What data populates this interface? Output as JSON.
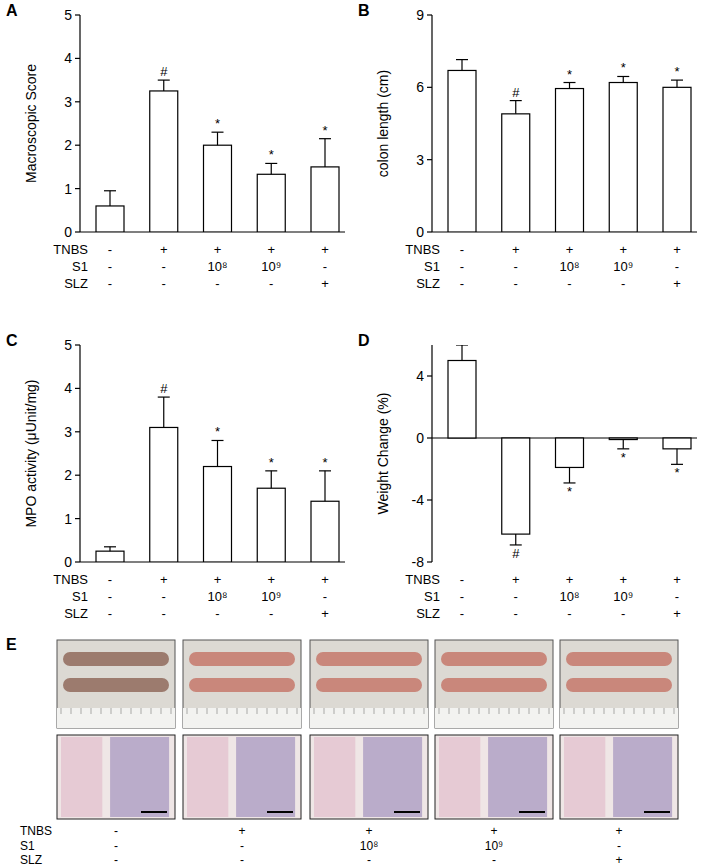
{
  "chart_data": [
    {
      "type": "bar",
      "title": "A",
      "y_label": "Macroscopic Score",
      "color": "#ffffff",
      "categories": [
        null,
        null,
        null,
        null,
        null
      ],
      "values": [
        0.6,
        3.25,
        2.0,
        1.33,
        1.5
      ],
      "errors": [
        0.35,
        0.25,
        0.3,
        0.25,
        0.65
      ],
      "annotations": [
        null,
        "#",
        "*",
        "*",
        "*"
      ],
      "ylim": [
        0,
        5
      ],
      "yticks": [
        0,
        1,
        2,
        3,
        4,
        5
      ],
      "conditions": [
        {
          "label": "TNBS",
          "values": [
            "-",
            "+",
            "+",
            "+",
            "+"
          ]
        },
        {
          "label": "S1",
          "values": [
            "-",
            "-",
            "10⁸",
            "10⁹",
            "-"
          ]
        },
        {
          "label": "SLZ",
          "values": [
            "-",
            "-",
            "-",
            "-",
            "+"
          ]
        }
      ]
    },
    {
      "type": "bar",
      "title": "B",
      "y_label": "colon length (cm)",
      "color": "#ffffff",
      "categories": [
        null,
        null,
        null,
        null,
        null
      ],
      "values": [
        6.7,
        4.9,
        5.95,
        6.2,
        6.0
      ],
      "errors": [
        0.45,
        0.55,
        0.25,
        0.25,
        0.3
      ],
      "annotations": [
        null,
        "#",
        "*",
        "*",
        "*"
      ],
      "ylim": [
        0,
        9
      ],
      "yticks": [
        0,
        3,
        6,
        9
      ],
      "conditions": [
        {
          "label": "TNBS",
          "values": [
            "-",
            "+",
            "+",
            "+",
            "+"
          ]
        },
        {
          "label": "S1",
          "values": [
            "-",
            "-",
            "10⁸",
            "10⁹",
            "-"
          ]
        },
        {
          "label": "SLZ",
          "values": [
            "-",
            "-",
            "-",
            "-",
            "+"
          ]
        }
      ]
    },
    {
      "type": "bar",
      "title": "C",
      "y_label": "MPO activity (μUnit/mg)",
      "color": "#ffffff",
      "categories": [
        null,
        null,
        null,
        null,
        null
      ],
      "values": [
        0.25,
        3.1,
        2.2,
        1.7,
        1.4
      ],
      "errors": [
        0.1,
        0.7,
        0.6,
        0.4,
        0.7
      ],
      "annotations": [
        null,
        "#",
        "*",
        "*",
        "*"
      ],
      "ylim": [
        0,
        5
      ],
      "yticks": [
        0,
        1,
        2,
        3,
        4,
        5
      ],
      "conditions": [
        {
          "label": "TNBS",
          "values": [
            "-",
            "+",
            "+",
            "+",
            "+"
          ]
        },
        {
          "label": "S1",
          "values": [
            "-",
            "-",
            "10⁸",
            "10⁹",
            "-"
          ]
        },
        {
          "label": "SLZ",
          "values": [
            "-",
            "-",
            "-",
            "-",
            "+"
          ]
        }
      ]
    },
    {
      "type": "bar",
      "title": "D",
      "y_label": "Weight Change (%)",
      "color": "#ffffff",
      "categories": [
        null,
        null,
        null,
        null,
        null
      ],
      "values": [
        5.0,
        -6.2,
        -1.9,
        -0.1,
        -0.7
      ],
      "errors": [
        1.0,
        0.7,
        1.0,
        0.6,
        1.0
      ],
      "annotations": [
        null,
        "#",
        "*",
        "*",
        "*"
      ],
      "ylim": [
        -8,
        6
      ],
      "yticks": [
        -8,
        -4,
        0,
        4
      ],
      "conditions": [
        {
          "label": "TNBS",
          "values": [
            "-",
            "+",
            "+",
            "+",
            "+"
          ]
        },
        {
          "label": "S1",
          "values": [
            "-",
            "-",
            "10⁸",
            "10⁹",
            "-"
          ]
        },
        {
          "label": "SLZ",
          "values": [
            "-",
            "-",
            "-",
            "-",
            "+"
          ]
        }
      ]
    }
  ],
  "panel_e": {
    "title": "E",
    "conditions": [
      {
        "label": "TNBS",
        "values": [
          "-",
          "+",
          "+",
          "+",
          "+"
        ]
      },
      {
        "label": "S1",
        "values": [
          "-",
          "-",
          "10⁸",
          "10⁹",
          "-"
        ]
      },
      {
        "label": "SLZ",
        "values": [
          "-",
          "-",
          "-",
          "-",
          "+"
        ]
      }
    ]
  }
}
